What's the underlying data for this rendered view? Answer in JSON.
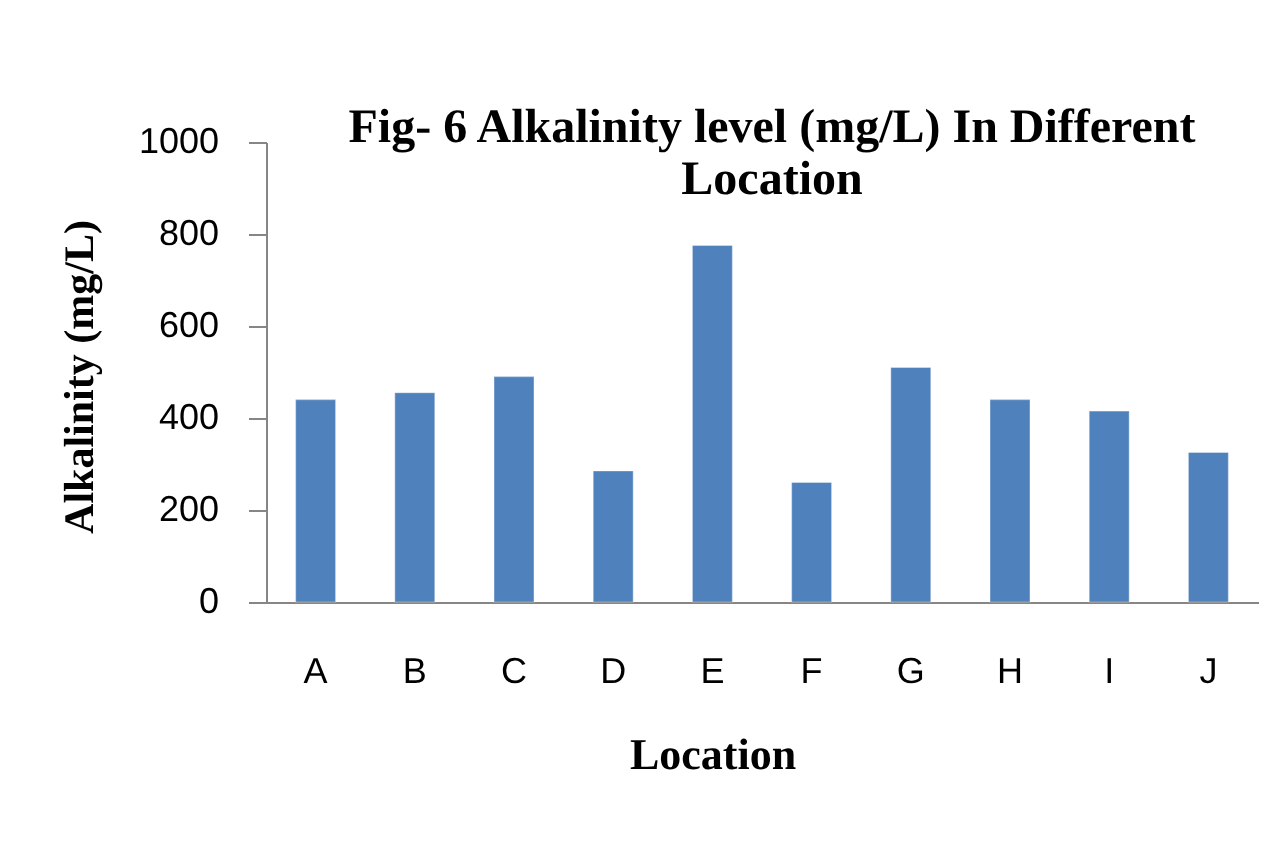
{
  "chart_data": {
    "type": "bar",
    "title": "Fig- 6 Alkalinity level (mg/L) In Different Location",
    "xlabel": "Location",
    "ylabel": "Alkalinity (mg/L)",
    "categories": [
      "A",
      "B",
      "C",
      "D",
      "E",
      "F",
      "G",
      "H",
      "I",
      "J"
    ],
    "values": [
      440,
      455,
      490,
      285,
      775,
      260,
      510,
      440,
      415,
      325
    ],
    "color": "#4f81bd",
    "ylim": [
      0,
      1000
    ],
    "yticks": [
      0,
      200,
      400,
      600,
      800,
      1000
    ],
    "grid": false
  }
}
